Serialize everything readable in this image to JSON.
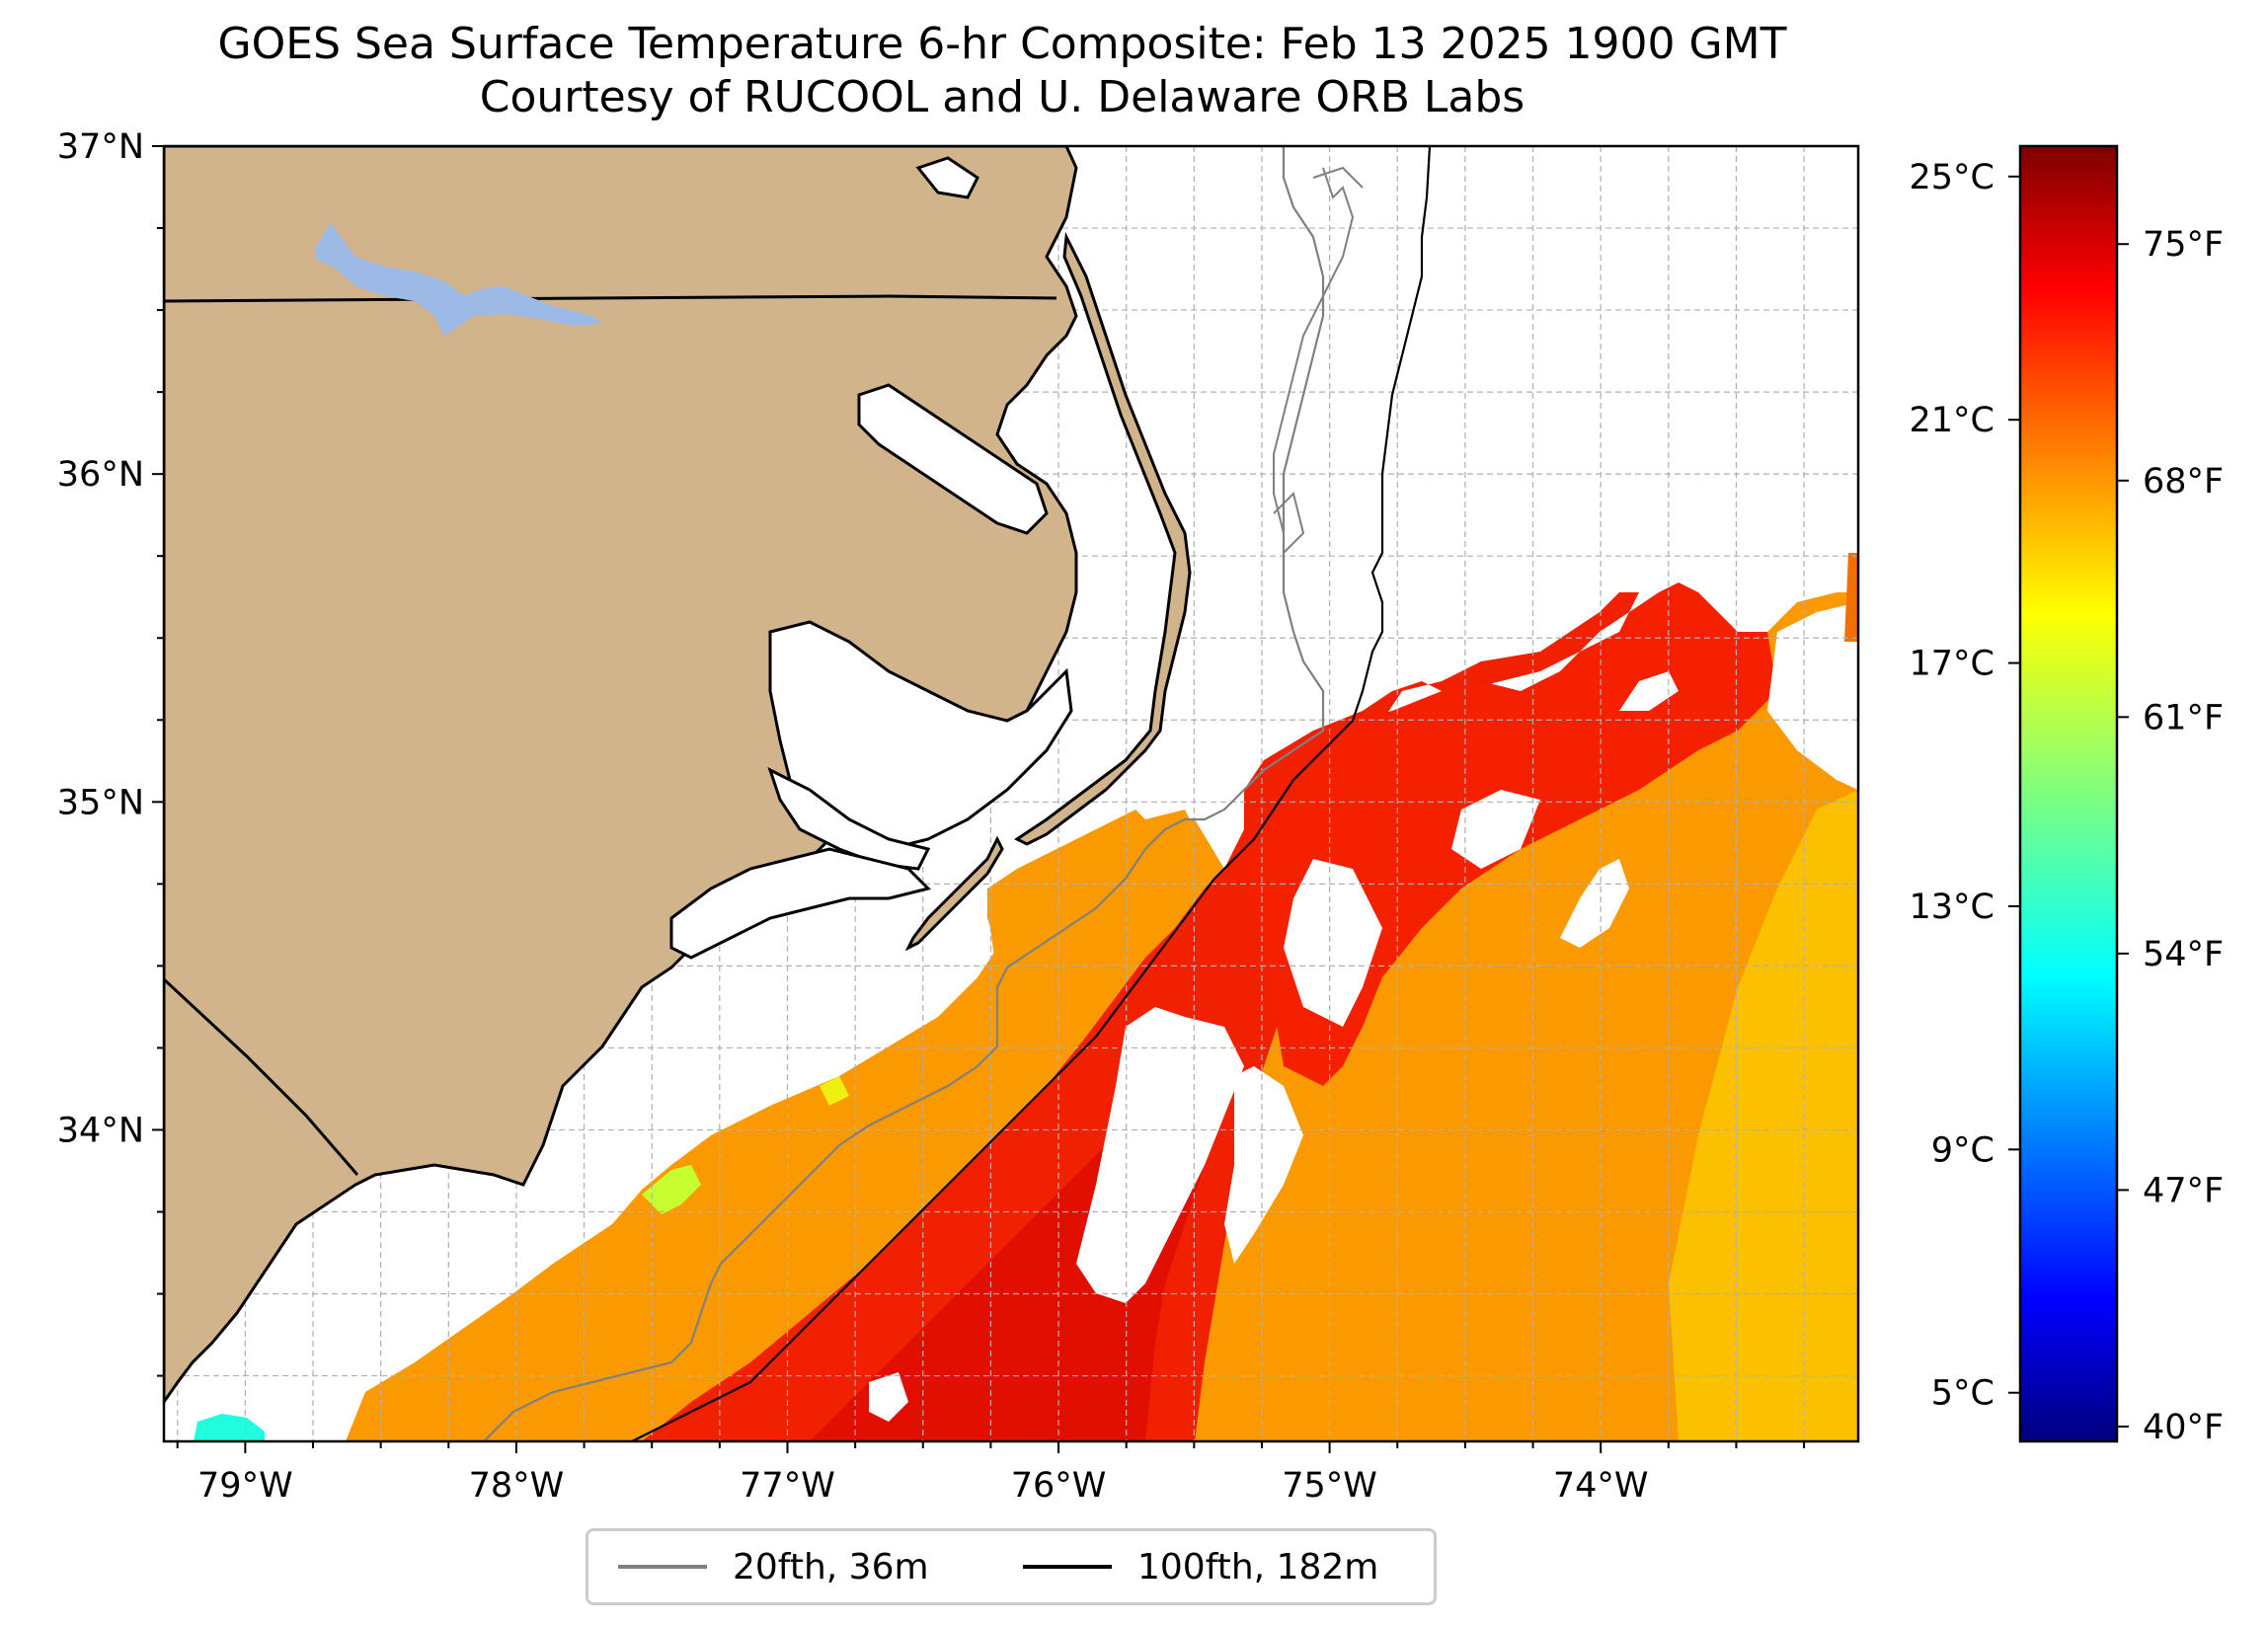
{
  "title": {
    "line1": "GOES Sea Surface Temperature 6-hr Composite: Feb 13 2025 1900 GMT",
    "line2": "Courtesy of RUCOOL and U. Delaware ORB Labs"
  },
  "map": {
    "extent": {
      "lon_min": -79.3,
      "lon_max": -73.05,
      "lat_min": 33.05,
      "lat_max": 37.0
    },
    "lon_ticks": [
      {
        "value": -79,
        "label": "79°W"
      },
      {
        "value": -78,
        "label": "78°W"
      },
      {
        "value": -77,
        "label": "77°W"
      },
      {
        "value": -76,
        "label": "76°W"
      },
      {
        "value": -75,
        "label": "75°W"
      },
      {
        "value": -74,
        "label": "74°W"
      }
    ],
    "lat_ticks": [
      {
        "value": 37,
        "label": "37°N"
      },
      {
        "value": 36,
        "label": "36°N"
      },
      {
        "value": 35,
        "label": "35°N"
      },
      {
        "value": 34,
        "label": "34°N"
      }
    ],
    "gridlines": true,
    "land_color": "#d2b48c",
    "water_color": "#ffffff",
    "lake_color": "#9db9e6",
    "features": [
      {
        "name": "North Carolina / Virginia coast",
        "type": "land"
      },
      {
        "name": "Outer Banks barrier islands",
        "type": "land"
      },
      {
        "name": "Kerr Lake",
        "type": "lake"
      },
      {
        "name": "NC-VA state border",
        "type": "border"
      },
      {
        "name": "NC-SC state border",
        "type": "border"
      },
      {
        "name": "Gulf Stream warm SST region",
        "type": "sst"
      }
    ]
  },
  "colorbar": {
    "celsius_ticks": [
      {
        "value": 25,
        "label": "25°C"
      },
      {
        "value": 21,
        "label": "21°C"
      },
      {
        "value": 17,
        "label": "17°C"
      },
      {
        "value": 13,
        "label": "13°C"
      },
      {
        "value": 9,
        "label": "9°C"
      },
      {
        "value": 5,
        "label": "5°C"
      }
    ],
    "fahrenheit_ticks": [
      {
        "value": 75,
        "label": "75°F"
      },
      {
        "value": 68,
        "label": "68°F"
      },
      {
        "value": 61,
        "label": "61°F"
      },
      {
        "value": 54,
        "label": "54°F"
      },
      {
        "value": 47,
        "label": "47°F"
      },
      {
        "value": 40,
        "label": "40°F"
      }
    ],
    "range_celsius": [
      4.2,
      25.5
    ],
    "colormap": "jet"
  },
  "legend": {
    "items": [
      {
        "label": "20fth, 36m",
        "color": "#808080"
      },
      {
        "label": "100fth, 182m",
        "color": "#000000"
      }
    ]
  }
}
